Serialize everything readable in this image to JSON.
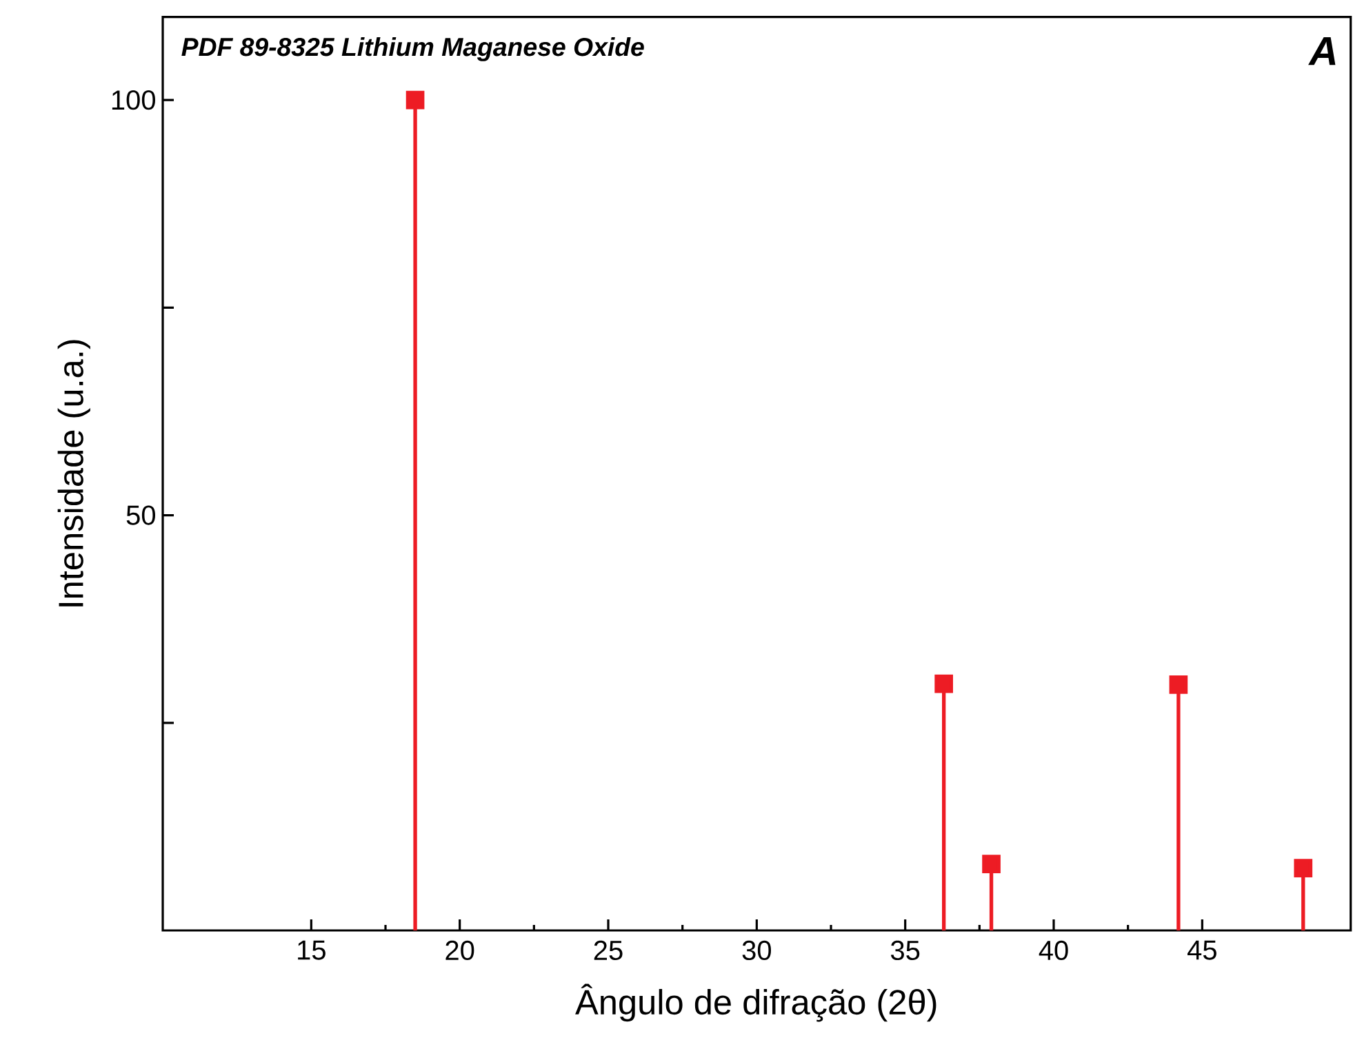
{
  "chart_data": {
    "type": "lollipop",
    "title": "PDF 89-8325 Lithium Maganese Oxide",
    "annotations": [
      "A"
    ],
    "xlabel": "Ângulo de difração (2θ)",
    "ylabel": "Intensidade (u.a.)",
    "x": [
      18.5,
      36.3,
      37.9,
      44.2,
      48.4
    ],
    "series": [
      {
        "color": "#ed1c24",
        "values": [
          100,
          29.7,
          8.0,
          29.6,
          7.5
        ]
      }
    ],
    "marker": "square",
    "xlim": [
      10,
      50
    ],
    "ylim": [
      0,
      110
    ],
    "xticks": [
      15,
      20,
      25,
      30,
      35,
      40,
      45
    ],
    "yticks": [
      {
        "value": 25,
        "label": null
      },
      50,
      {
        "value": 75,
        "label": null
      },
      100
    ],
    "grid": false
  }
}
